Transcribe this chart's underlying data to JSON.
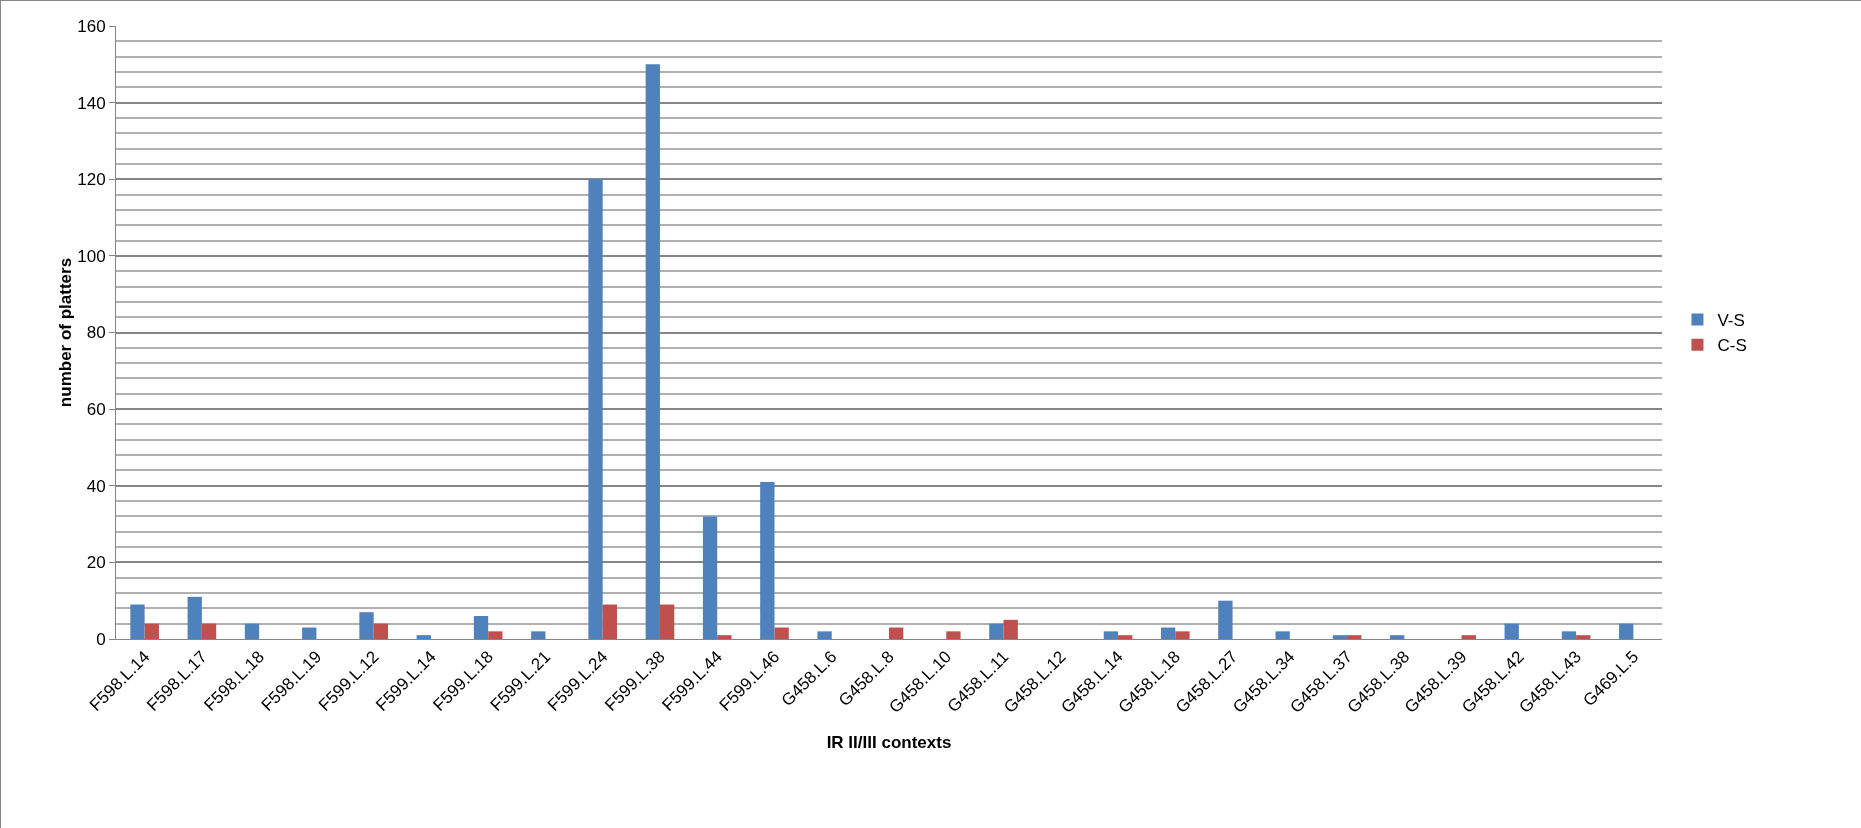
{
  "chart_data": {
    "type": "bar",
    "xlabel": "IR II/III contexts",
    "ylabel": "number of platters",
    "categories": [
      "F598.L.14",
      "F598.L.17",
      "F598.L.18",
      "F598.L.19",
      "F599.L.12",
      "F599.L.14",
      "F599.L.18",
      "F599.L.21",
      "F599.L.24",
      "F599.L.38",
      "F599.L.44",
      "F599.L.46",
      "G458.L.6",
      "G458.L.8",
      "G458.L.10",
      "G458.L.11",
      "G458.L.12",
      "G458.L.14",
      "G458.L.18",
      "G458.L.27",
      "G458.L.34",
      "G458.L.37",
      "G458.L.38",
      "G458.L.39",
      "G458.L.42",
      "G458.L.43",
      "G469.L.5"
    ],
    "series": [
      {
        "name": "V-S",
        "color": "#4f81bd",
        "values": [
          9,
          11,
          4,
          3,
          7,
          1,
          6,
          2,
          120,
          150,
          32,
          41,
          2,
          0,
          0,
          4,
          0,
          2,
          3,
          10,
          2,
          1,
          1,
          0,
          4,
          2,
          4
        ]
      },
      {
        "name": "C-S",
        "color": "#c0504d",
        "values": [
          4,
          4,
          0,
          0,
          4,
          0,
          2,
          0,
          9,
          9,
          1,
          3,
          0,
          3,
          2,
          5,
          0,
          1,
          2,
          0,
          0,
          1,
          0,
          1,
          0,
          1,
          0
        ]
      }
    ],
    "ylim": [
      0,
      160
    ],
    "yticks": [
      0,
      20,
      40,
      60,
      80,
      100,
      120,
      140,
      160
    ],
    "grid": "y",
    "legend": "right"
  }
}
